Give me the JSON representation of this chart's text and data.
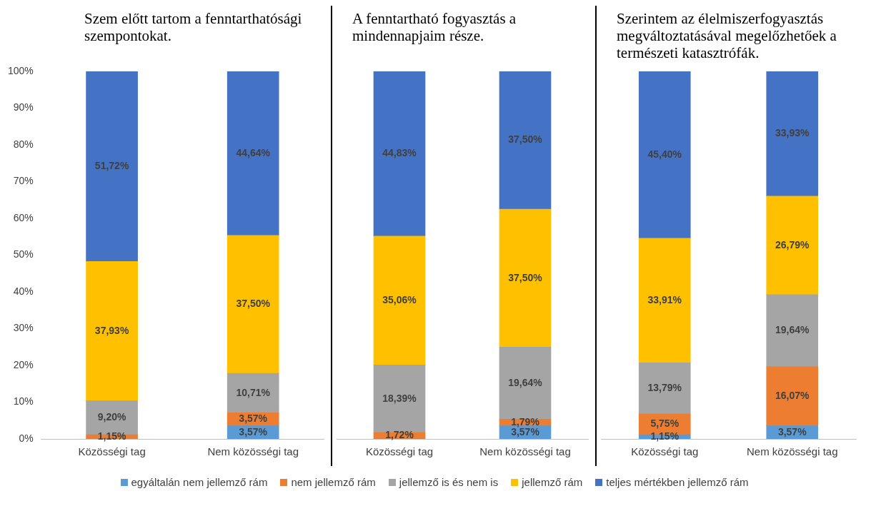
{
  "chart_data": [
    {
      "type": "bar",
      "title": "Szem előtt tartom a fenntarthatósági szempontokat.",
      "categories": [
        "Közösségi tag",
        "Nem közösségi tag"
      ],
      "stacked": true,
      "ylim": [
        0,
        100
      ],
      "yticks": [
        {
          "value": 0,
          "label": "0%"
        },
        {
          "value": 10,
          "label": "10%"
        },
        {
          "value": 20,
          "label": "20%"
        },
        {
          "value": 30,
          "label": "30%"
        },
        {
          "value": 40,
          "label": "40%"
        },
        {
          "value": 50,
          "label": "50%"
        },
        {
          "value": 60,
          "label": "60%"
        },
        {
          "value": 70,
          "label": "70%"
        },
        {
          "value": 80,
          "label": "80%"
        },
        {
          "value": 90,
          "label": "90%"
        },
        {
          "value": 100,
          "label": "100%"
        }
      ],
      "legend": "bottom",
      "series": [
        {
          "name": "egyáltalán nem jellemző rám",
          "color": "#5b9bd5",
          "values": [
            0,
            3.57
          ],
          "value_labels": [
            null,
            "3,57%"
          ]
        },
        {
          "name": "nem jellemző rám",
          "color": "#ed7d31",
          "values": [
            1.15,
            3.57
          ],
          "value_labels": [
            "1,15%",
            "3,57%"
          ]
        },
        {
          "name": "jellemző is és nem is",
          "color": "#a5a5a5",
          "values": [
            9.2,
            10.71
          ],
          "value_labels": [
            "9,20%",
            "10,71%"
          ]
        },
        {
          "name": "jellemző rám",
          "color": "#ffc000",
          "values": [
            37.93,
            37.5
          ],
          "value_labels": [
            "37,93%",
            "37,50%"
          ]
        },
        {
          "name": "teljes mértékben jellemző rám",
          "color": "#4472c4",
          "values": [
            51.72,
            44.64
          ],
          "value_labels": [
            "51,72%",
            "44,64%"
          ]
        }
      ]
    },
    {
      "type": "bar",
      "title": "A fenntartható fogyasztás a mindennapjaim része.",
      "categories": [
        "Közösségi tag",
        "Nem közösségi tag"
      ],
      "stacked": true,
      "ylim": [
        0,
        100
      ],
      "tick_labels": "x",
      "series": [
        {
          "color": "#5b9bd5",
          "values": [
            0,
            3.57
          ],
          "value_labels": [
            null,
            "3,57%"
          ]
        },
        {
          "color": "#ed7d31",
          "values": [
            1.72,
            1.79
          ],
          "value_labels": [
            "1,72%",
            "1,79%"
          ]
        },
        {
          "color": "#a5a5a5",
          "values": [
            18.39,
            19.64
          ],
          "value_labels": [
            "18,39%",
            "19,64%"
          ]
        },
        {
          "color": "#ffc000",
          "values": [
            35.06,
            37.5
          ],
          "value_labels": [
            "35,06%",
            "37,50%"
          ]
        },
        {
          "color": "#4472c4",
          "values": [
            44.83,
            37.5
          ],
          "value_labels": [
            "44,83%",
            "37,50%"
          ]
        }
      ]
    },
    {
      "type": "bar",
      "title": "Szerintem az élelmiszerfogyasztás megváltoztatásával megelőzhetőek a természeti katasztrófák.",
      "categories": [
        "Közösségi tag",
        "Nem közösségi tag"
      ],
      "stacked": true,
      "ylim": [
        0,
        100
      ],
      "tick_labels": "x",
      "series": [
        {
          "color": "#5b9bd5",
          "values": [
            1.15,
            3.57
          ],
          "value_labels": [
            "1,15%",
            "3,57%"
          ]
        },
        {
          "color": "#ed7d31",
          "values": [
            5.75,
            16.07
          ],
          "value_labels": [
            "5,75%",
            "16,07%"
          ]
        },
        {
          "color": "#a5a5a5",
          "values": [
            13.79,
            19.64
          ],
          "value_labels": [
            "13,79%",
            "19,64%"
          ]
        },
        {
          "color": "#ffc000",
          "values": [
            33.91,
            26.79
          ],
          "value_labels": [
            "33,91%",
            "26,79%"
          ]
        },
        {
          "color": "#4472c4",
          "values": [
            45.4,
            33.93
          ],
          "value_labels": [
            "45,40%",
            "33,93%"
          ]
        }
      ]
    }
  ]
}
